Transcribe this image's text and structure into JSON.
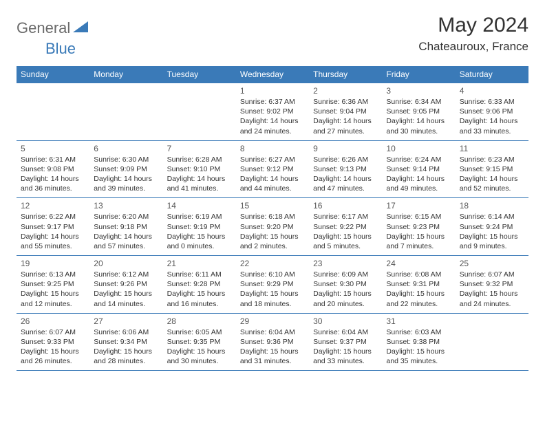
{
  "logo": {
    "text1": "General",
    "text2": "Blue",
    "color1": "#6b6b6b",
    "color2": "#3a7ab8"
  },
  "title": "May 2024",
  "location": "Chateauroux, France",
  "header_bg": "#3a7ab8",
  "header_fg": "#ffffff",
  "border_color": "#3a7ab8",
  "day_num_color": "#555555",
  "text_color": "#333333",
  "body_fontsize": 10.5,
  "header_fontsize": 12,
  "title_fontsize": 30,
  "location_fontsize": 17,
  "weekdays": [
    "Sunday",
    "Monday",
    "Tuesday",
    "Wednesday",
    "Thursday",
    "Friday",
    "Saturday"
  ],
  "weeks": [
    [
      null,
      null,
      null,
      {
        "n": "1",
        "sr": "6:37 AM",
        "ss": "9:02 PM",
        "dl": "14 hours and 24 minutes."
      },
      {
        "n": "2",
        "sr": "6:36 AM",
        "ss": "9:04 PM",
        "dl": "14 hours and 27 minutes."
      },
      {
        "n": "3",
        "sr": "6:34 AM",
        "ss": "9:05 PM",
        "dl": "14 hours and 30 minutes."
      },
      {
        "n": "4",
        "sr": "6:33 AM",
        "ss": "9:06 PM",
        "dl": "14 hours and 33 minutes."
      }
    ],
    [
      {
        "n": "5",
        "sr": "6:31 AM",
        "ss": "9:08 PM",
        "dl": "14 hours and 36 minutes."
      },
      {
        "n": "6",
        "sr": "6:30 AM",
        "ss": "9:09 PM",
        "dl": "14 hours and 39 minutes."
      },
      {
        "n": "7",
        "sr": "6:28 AM",
        "ss": "9:10 PM",
        "dl": "14 hours and 41 minutes."
      },
      {
        "n": "8",
        "sr": "6:27 AM",
        "ss": "9:12 PM",
        "dl": "14 hours and 44 minutes."
      },
      {
        "n": "9",
        "sr": "6:26 AM",
        "ss": "9:13 PM",
        "dl": "14 hours and 47 minutes."
      },
      {
        "n": "10",
        "sr": "6:24 AM",
        "ss": "9:14 PM",
        "dl": "14 hours and 49 minutes."
      },
      {
        "n": "11",
        "sr": "6:23 AM",
        "ss": "9:15 PM",
        "dl": "14 hours and 52 minutes."
      }
    ],
    [
      {
        "n": "12",
        "sr": "6:22 AM",
        "ss": "9:17 PM",
        "dl": "14 hours and 55 minutes."
      },
      {
        "n": "13",
        "sr": "6:20 AM",
        "ss": "9:18 PM",
        "dl": "14 hours and 57 minutes."
      },
      {
        "n": "14",
        "sr": "6:19 AM",
        "ss": "9:19 PM",
        "dl": "15 hours and 0 minutes."
      },
      {
        "n": "15",
        "sr": "6:18 AM",
        "ss": "9:20 PM",
        "dl": "15 hours and 2 minutes."
      },
      {
        "n": "16",
        "sr": "6:17 AM",
        "ss": "9:22 PM",
        "dl": "15 hours and 5 minutes."
      },
      {
        "n": "17",
        "sr": "6:15 AM",
        "ss": "9:23 PM",
        "dl": "15 hours and 7 minutes."
      },
      {
        "n": "18",
        "sr": "6:14 AM",
        "ss": "9:24 PM",
        "dl": "15 hours and 9 minutes."
      }
    ],
    [
      {
        "n": "19",
        "sr": "6:13 AM",
        "ss": "9:25 PM",
        "dl": "15 hours and 12 minutes."
      },
      {
        "n": "20",
        "sr": "6:12 AM",
        "ss": "9:26 PM",
        "dl": "15 hours and 14 minutes."
      },
      {
        "n": "21",
        "sr": "6:11 AM",
        "ss": "9:28 PM",
        "dl": "15 hours and 16 minutes."
      },
      {
        "n": "22",
        "sr": "6:10 AM",
        "ss": "9:29 PM",
        "dl": "15 hours and 18 minutes."
      },
      {
        "n": "23",
        "sr": "6:09 AM",
        "ss": "9:30 PM",
        "dl": "15 hours and 20 minutes."
      },
      {
        "n": "24",
        "sr": "6:08 AM",
        "ss": "9:31 PM",
        "dl": "15 hours and 22 minutes."
      },
      {
        "n": "25",
        "sr": "6:07 AM",
        "ss": "9:32 PM",
        "dl": "15 hours and 24 minutes."
      }
    ],
    [
      {
        "n": "26",
        "sr": "6:07 AM",
        "ss": "9:33 PM",
        "dl": "15 hours and 26 minutes."
      },
      {
        "n": "27",
        "sr": "6:06 AM",
        "ss": "9:34 PM",
        "dl": "15 hours and 28 minutes."
      },
      {
        "n": "28",
        "sr": "6:05 AM",
        "ss": "9:35 PM",
        "dl": "15 hours and 30 minutes."
      },
      {
        "n": "29",
        "sr": "6:04 AM",
        "ss": "9:36 PM",
        "dl": "15 hours and 31 minutes."
      },
      {
        "n": "30",
        "sr": "6:04 AM",
        "ss": "9:37 PM",
        "dl": "15 hours and 33 minutes."
      },
      {
        "n": "31",
        "sr": "6:03 AM",
        "ss": "9:38 PM",
        "dl": "15 hours and 35 minutes."
      },
      null
    ]
  ],
  "labels": {
    "sunrise": "Sunrise:",
    "sunset": "Sunset:",
    "daylight": "Daylight:"
  }
}
